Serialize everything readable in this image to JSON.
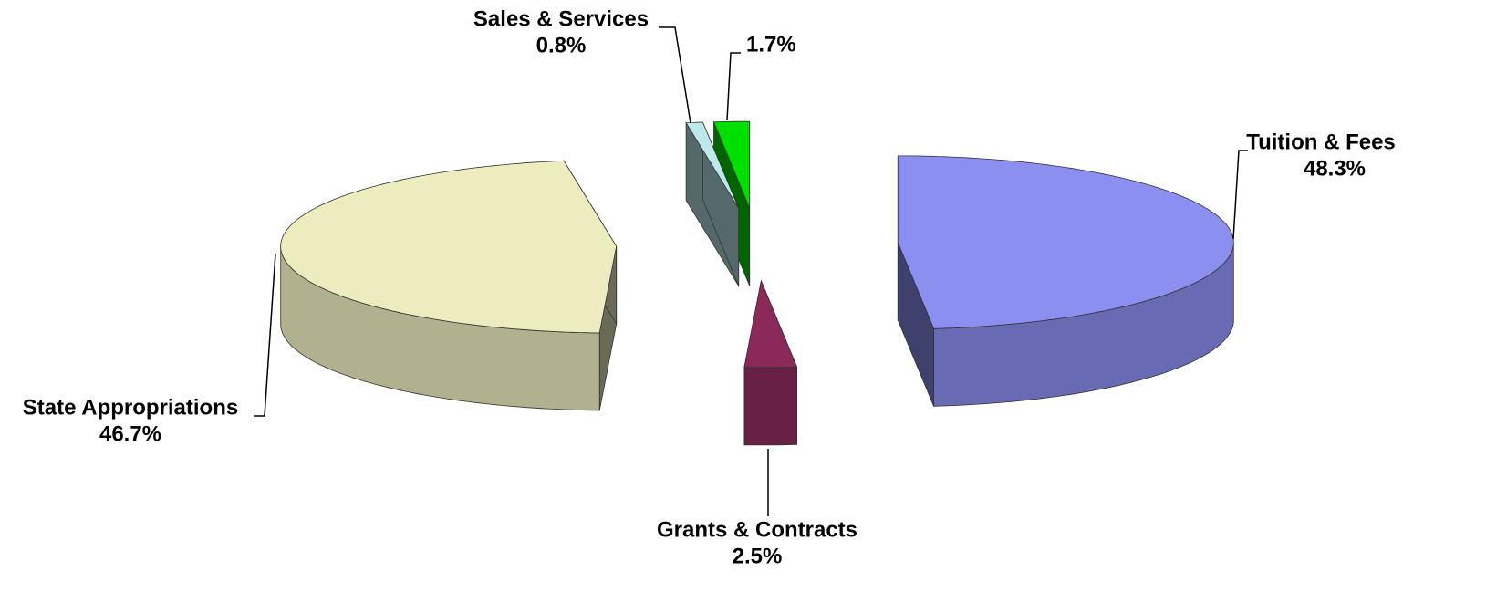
{
  "chart_data": {
    "type": "pie",
    "categories": [
      "Tuition & Fees",
      "Grants & Contracts",
      "State Appropriations",
      "Sales & Services",
      null
    ],
    "values": [
      48.3,
      2.5,
      46.7,
      0.8,
      1.7
    ],
    "value_labels": [
      "48.3%",
      "2.5%",
      "46.7%",
      "0.8%",
      "1.7%"
    ],
    "colors": [
      "#8b8fef",
      "#8b2a5a",
      "#ececbe",
      "#bde8ec",
      "#00e000"
    ],
    "exploded": true,
    "three_d": true
  }
}
